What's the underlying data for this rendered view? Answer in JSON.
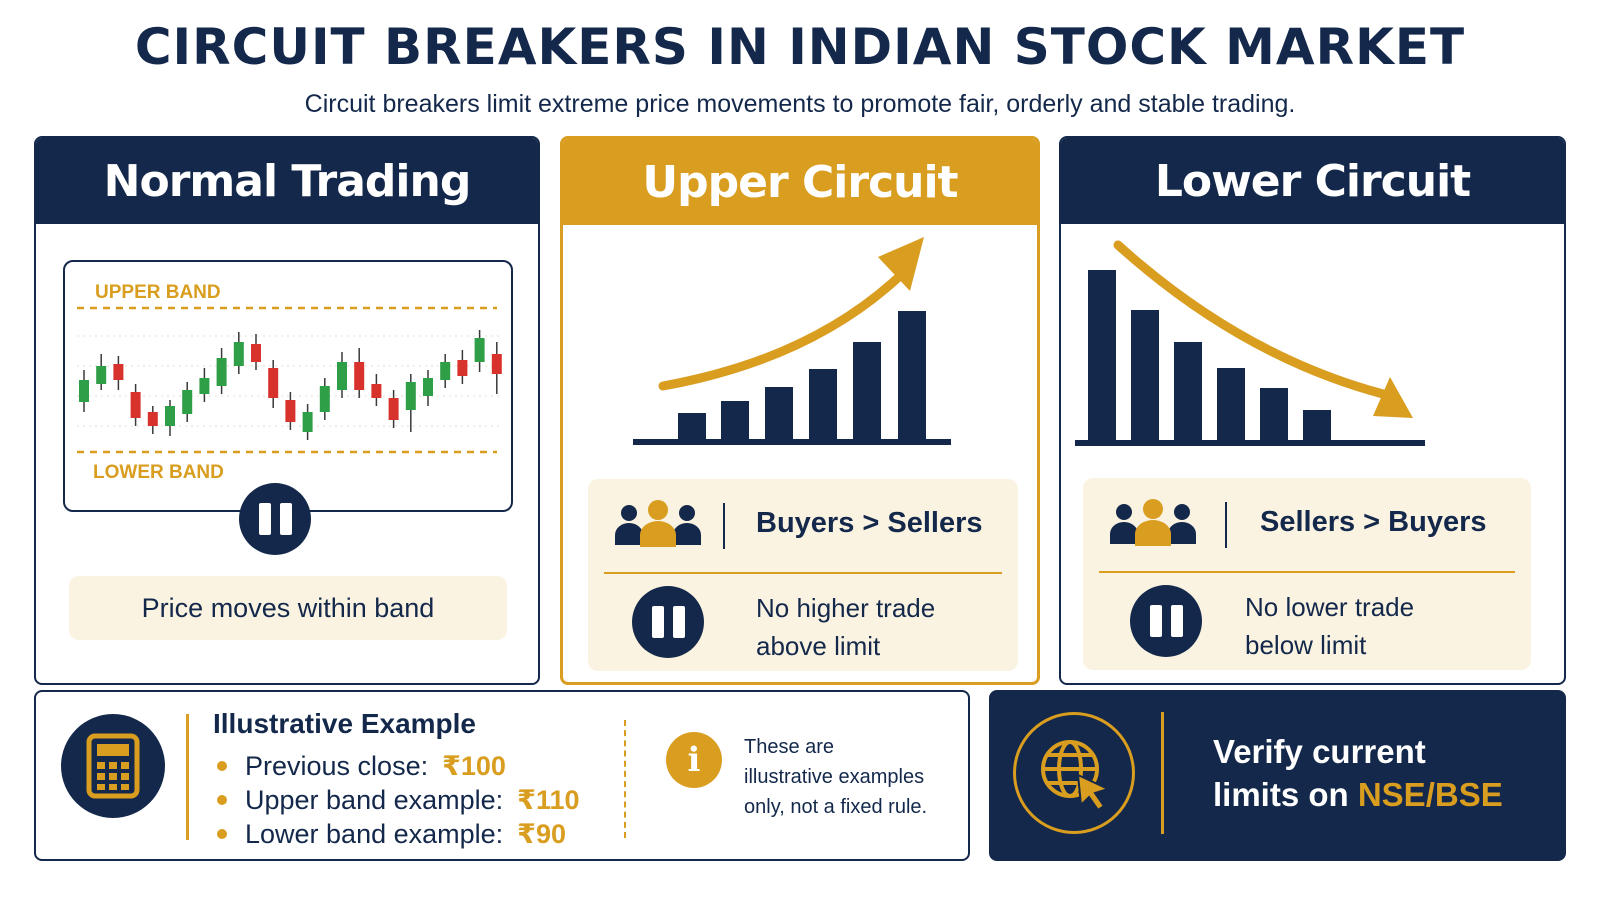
{
  "title": "CIRCUIT BREAKERS IN INDIAN STOCK MARKET",
  "subtitle": "Circuit breakers limit extreme price movements to promote fair, orderly and stable trading.",
  "colors": {
    "navy": "#13284a",
    "gold": "#d99d1f",
    "cream": "#fbf3e2",
    "candle_green": "#2e9e47",
    "candle_red": "#d7322b"
  },
  "normal": {
    "heading": "Normal Trading",
    "upper_band_label": "UPPER BAND",
    "lower_band_label": "LOWER BAND",
    "status": "Price moves within band",
    "icon": "pause-icon"
  },
  "upper": {
    "heading": "Upper Circuit",
    "ratio": "Buyers > Sellers",
    "rule_line1": "No higher trade",
    "rule_line2": "above limit",
    "icons": [
      "rising-bar-chart-icon",
      "people-icon",
      "pause-icon"
    ]
  },
  "lower": {
    "heading": "Lower Circuit",
    "ratio": "Sellers > Buyers",
    "rule_line1": "No lower trade",
    "rule_line2": "below limit",
    "icons": [
      "falling-bar-chart-icon",
      "people-icon",
      "pause-icon"
    ]
  },
  "example": {
    "title": "Illustrative Example",
    "items": [
      {
        "label": "Previous close:",
        "value": "₹100"
      },
      {
        "label": "Upper band example:",
        "value": "₹110"
      },
      {
        "label": "Lower band example:",
        "value": "₹90"
      }
    ],
    "note_line1": "These are",
    "note_line2": "illustrative examples",
    "note_line3": "only, not a fixed rule.",
    "icons": [
      "calculator-icon",
      "info-icon"
    ]
  },
  "verify": {
    "line1": "Verify current",
    "line2_prefix": "limits on ",
    "line2_highlight": "NSE/BSE",
    "icon": "globe-cursor-icon"
  }
}
